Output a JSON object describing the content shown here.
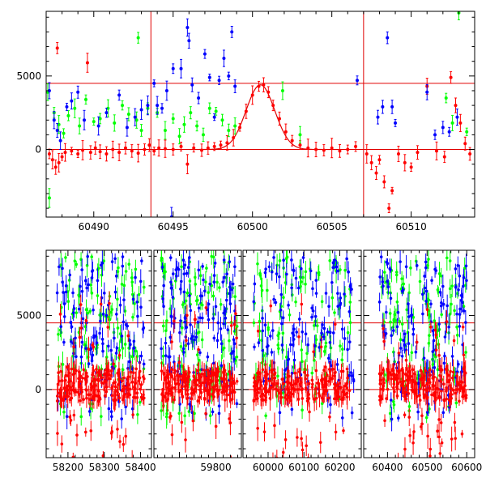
{
  "chart_data": [
    {
      "type": "scatter",
      "panel": "top",
      "title": "",
      "xlabel": "",
      "ylabel": "",
      "xlim": [
        60487,
        60514
      ],
      "ylim": [
        -4600,
        9400
      ],
      "x_ticks": [
        60490,
        60495,
        60500,
        60505,
        60510
      ],
      "y_ticks": [
        0,
        5000
      ],
      "hlines": [
        0,
        4500
      ],
      "vlines": [
        60493.6,
        60507.0
      ],
      "model_curve": {
        "type": "gaussian",
        "peak_x": 60500.5,
        "peak_y": 4400,
        "sigma": 0.9,
        "baseline": 0
      },
      "colors": {
        "red": "#ff0000",
        "green": "#00ff00",
        "blue": "#0000ff",
        "guide": "#e00000"
      },
      "series": [
        {
          "color": "#ff0000",
          "points": [
            [
              60487.2,
              -300
            ],
            [
              60487.4,
              -700
            ],
            [
              60487.6,
              -1200
            ],
            [
              60487.8,
              -900
            ],
            [
              60488.0,
              -500
            ],
            [
              60488.2,
              -200
            ],
            [
              60487.7,
              6900
            ],
            [
              60488.6,
              -100
            ],
            [
              60489.0,
              -300
            ],
            [
              60489.3,
              -50
            ],
            [
              60489.6,
              5900
            ],
            [
              60489.8,
              -200
            ],
            [
              60490.1,
              100
            ],
            [
              60490.4,
              -150
            ],
            [
              60490.8,
              -300
            ],
            [
              60491.2,
              0
            ],
            [
              60491.6,
              -200
            ],
            [
              60492.0,
              100
            ],
            [
              60492.4,
              -100
            ],
            [
              60492.8,
              -250
            ],
            [
              60493.2,
              0
            ],
            [
              60493.5,
              300
            ],
            [
              60493.8,
              -100
            ],
            [
              60494.1,
              100
            ],
            [
              60494.5,
              50
            ],
            [
              60495.0,
              0
            ],
            [
              60495.5,
              200
            ],
            [
              60495.9,
              -1000
            ],
            [
              60496.3,
              100
            ],
            [
              60496.8,
              -50
            ],
            [
              60497.2,
              100
            ],
            [
              60497.6,
              200
            ],
            [
              60498.0,
              300
            ],
            [
              60498.4,
              450
            ],
            [
              60498.8,
              800
            ],
            [
              60499.2,
              1500
            ],
            [
              60499.6,
              2600
            ],
            [
              60500.0,
              3700
            ],
            [
              60500.4,
              4300
            ],
            [
              60500.7,
              4400
            ],
            [
              60501.0,
              3900
            ],
            [
              60501.3,
              3000
            ],
            [
              60501.7,
              2100
            ],
            [
              60502.1,
              1200
            ],
            [
              60502.5,
              600
            ],
            [
              60503.0,
              300
            ],
            [
              60503.5,
              100
            ],
            [
              60504.0,
              0
            ],
            [
              60504.5,
              -50
            ],
            [
              60505.0,
              100
            ],
            [
              60505.5,
              -100
            ],
            [
              60506.0,
              0
            ],
            [
              60506.5,
              200
            ],
            [
              60507.2,
              -300
            ],
            [
              60507.5,
              -900
            ],
            [
              60507.8,
              -1600
            ],
            [
              60508.0,
              -700
            ],
            [
              60508.3,
              -2200
            ],
            [
              60508.6,
              -4000
            ],
            [
              60508.8,
              -2800
            ],
            [
              60509.2,
              -300
            ],
            [
              60509.6,
              -900
            ],
            [
              60510.0,
              -1200
            ],
            [
              60510.4,
              -200
            ],
            [
              60511.0,
              4300
            ],
            [
              60511.6,
              -100
            ],
            [
              60512.1,
              -500
            ],
            [
              60512.5,
              4900
            ],
            [
              60512.8,
              3000
            ],
            [
              60513.1,
              1800
            ],
            [
              60513.4,
              400
            ],
            [
              60513.7,
              -300
            ]
          ]
        },
        {
          "color": "#00ff00",
          "points": [
            [
              60487.1,
              3900
            ],
            [
              60487.2,
              -3300
            ],
            [
              60487.5,
              2500
            ],
            [
              60487.8,
              1700
            ],
            [
              60488.1,
              1100
            ],
            [
              60488.4,
              2300
            ],
            [
              60488.8,
              2800
            ],
            [
              60489.1,
              1600
            ],
            [
              60489.5,
              3400
            ],
            [
              60490.0,
              1900
            ],
            [
              60490.4,
              2100
            ],
            [
              60490.9,
              2800
            ],
            [
              60491.3,
              1800
            ],
            [
              60491.8,
              3000
            ],
            [
              60492.2,
              2400
            ],
            [
              60492.7,
              2000
            ],
            [
              60493.0,
              1300
            ],
            [
              60492.8,
              7600
            ],
            [
              60493.4,
              2800
            ],
            [
              60494.0,
              2500
            ],
            [
              60494.5,
              1300
            ],
            [
              60495.0,
              2100
            ],
            [
              60495.4,
              900
            ],
            [
              60495.7,
              1700
            ],
            [
              60496.1,
              2500
            ],
            [
              60496.5,
              1600
            ],
            [
              60496.9,
              1000
            ],
            [
              60497.3,
              2800
            ],
            [
              60497.7,
              2600
            ],
            [
              60498.1,
              2000
            ],
            [
              60498.5,
              1300
            ],
            [
              60498.9,
              1600
            ],
            [
              60501.9,
              4000
            ],
            [
              60503.0,
              1000
            ],
            [
              60512.2,
              3500
            ],
            [
              60512.6,
              1800
            ],
            [
              60513.0,
              9300
            ],
            [
              60513.5,
              1200
            ]
          ]
        },
        {
          "color": "#0000ff",
          "points": [
            [
              60487.2,
              4000
            ],
            [
              60487.5,
              2000
            ],
            [
              60487.7,
              1300
            ],
            [
              60487.9,
              600
            ],
            [
              60488.3,
              2900
            ],
            [
              60488.6,
              3300
            ],
            [
              60489.0,
              3900
            ],
            [
              60489.4,
              2000
            ],
            [
              60490.3,
              1600
            ],
            [
              60490.8,
              2500
            ],
            [
              60491.6,
              3700
            ],
            [
              60492.1,
              1500
            ],
            [
              60492.6,
              2200
            ],
            [
              60493.0,
              2700
            ],
            [
              60493.4,
              3000
            ],
            [
              60493.8,
              4500
            ],
            [
              60494.0,
              3000
            ],
            [
              60494.3,
              2800
            ],
            [
              60494.6,
              4000
            ],
            [
              60495.0,
              5500
            ],
            [
              60495.5,
              5500
            ],
            [
              60495.9,
              8300
            ],
            [
              60496.0,
              7400
            ],
            [
              60496.2,
              4400
            ],
            [
              60496.6,
              3500
            ],
            [
              60497.0,
              6500
            ],
            [
              60497.3,
              4900
            ],
            [
              60497.6,
              2200
            ],
            [
              60497.9,
              4700
            ],
            [
              60498.2,
              6200
            ],
            [
              60498.5,
              5000
            ],
            [
              60498.7,
              8000
            ],
            [
              60498.9,
              4300
            ],
            [
              60494.9,
              -4600
            ],
            [
              60506.6,
              4700
            ],
            [
              60507.9,
              2200
            ],
            [
              60508.2,
              2900
            ],
            [
              60508.5,
              7600
            ],
            [
              60508.8,
              2900
            ],
            [
              60509.0,
              1800
            ],
            [
              60511.0,
              3900
            ],
            [
              60511.5,
              1000
            ],
            [
              60512.0,
              1500
            ],
            [
              60512.4,
              1200
            ],
            [
              60512.9,
              2200
            ]
          ]
        }
      ]
    },
    {
      "type": "scatter",
      "panel": "bottom",
      "title": "",
      "xlabel": "",
      "ylabel": "",
      "broken_axis": true,
      "segments": [
        {
          "xlim": [
            58140,
            58430
          ],
          "x_ticks": [
            58200,
            58300,
            58400
          ]
        },
        {
          "xlim": [
            59630,
            59870
          ],
          "x_ticks": [
            59800
          ]
        },
        {
          "xlim": [
            59930,
            60260
          ],
          "x_ticks": [
            60000,
            60100,
            60200
          ]
        },
        {
          "xlim": [
            60340,
            60620
          ],
          "x_ticks": [
            60400,
            60500,
            60600
          ]
        }
      ],
      "data_ranges": [
        [
          58170,
          58410
        ],
        [
          59650,
          59860
        ],
        [
          59960,
          60240
        ],
        [
          60380,
          60600
        ]
      ],
      "ylim": [
        -4600,
        9400
      ],
      "y_ticks": [
        0,
        5000
      ],
      "hlines": [
        0,
        4500
      ],
      "colors": {
        "red": "#ff0000",
        "green": "#00ff00",
        "blue": "#0000ff",
        "guide": "#e00000"
      },
      "series_summary": [
        {
          "color": "#00ff00",
          "typical_range": [
            -500,
            8500
          ],
          "points_per_range": 110
        },
        {
          "color": "#0000ff",
          "typical_range": [
            -500,
            8500
          ],
          "points_per_range": 130
        },
        {
          "color": "#ff0000",
          "typical_range": [
            -1500,
            2500
          ],
          "points_per_range": 220
        }
      ]
    }
  ]
}
